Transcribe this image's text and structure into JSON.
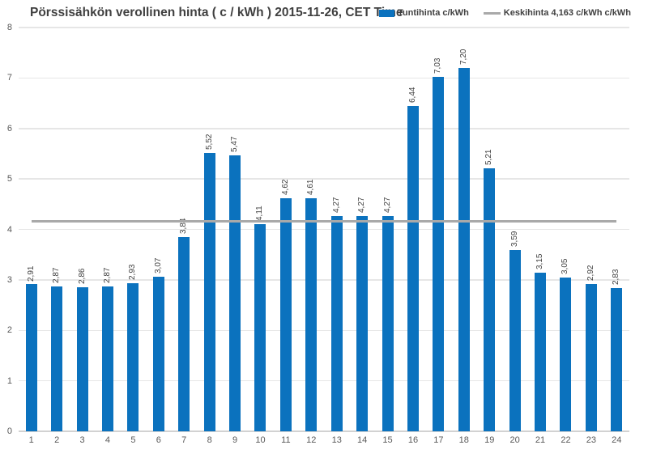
{
  "title": "Pörssisähkön verollinen hinta ( c / kWh ) 2015-11-26, CET Time",
  "legend": {
    "items": [
      {
        "label": "Tuntihinta c/kWh",
        "swatch": "bar-swatch"
      },
      {
        "label": "Keskihinta 4,163 c/kWh c/kWh",
        "swatch": "line-swatch"
      }
    ]
  },
  "colors": {
    "bar": "#0B72BE",
    "average_line": "#A9A9A9",
    "gridline": "#E6E6E6",
    "baseline": "#D2D2D2",
    "title_text": "#404040",
    "tick_text": "#595959",
    "value_label_text": "#404040"
  },
  "chart_data": {
    "type": "bar",
    "title": "Pörssisähkön verollinen hinta ( c / kWh ) 2015-11-26, CET Time",
    "xlabel": "",
    "ylabel": "",
    "series_name": "Tuntihinta c/kWh",
    "categories": [
      "1",
      "2",
      "3",
      "4",
      "5",
      "6",
      "7",
      "8",
      "9",
      "10",
      "11",
      "12",
      "13",
      "14",
      "15",
      "16",
      "17",
      "18",
      "19",
      "20",
      "21",
      "22",
      "23",
      "24"
    ],
    "values": [
      2.91,
      2.87,
      2.86,
      2.87,
      2.93,
      3.07,
      3.84,
      5.52,
      5.47,
      4.11,
      4.62,
      4.61,
      4.27,
      4.27,
      4.27,
      6.44,
      7.03,
      7.2,
      5.21,
      3.59,
      3.15,
      3.05,
      2.92,
      2.83
    ],
    "value_labels": [
      "2,91",
      "2,87",
      "2,86",
      "2,87",
      "2,93",
      "3,07",
      "3,84",
      "5,52",
      "5,47",
      "4,11",
      "4,62",
      "4,61",
      "4,27",
      "4,27",
      "4,27",
      "6,44",
      "7,03",
      "7,20",
      "5,21",
      "3,59",
      "3,15",
      "3,05",
      "2,92",
      "2,83"
    ],
    "average_line": {
      "value": 4.163,
      "label": "Keskihinta 4,163 c/kWh c/kWh"
    },
    "ylim": [
      0,
      8
    ],
    "yticks": [
      0,
      1,
      2,
      3,
      4,
      5,
      6,
      7,
      8
    ],
    "grid": true,
    "legend_position": "top-right"
  }
}
